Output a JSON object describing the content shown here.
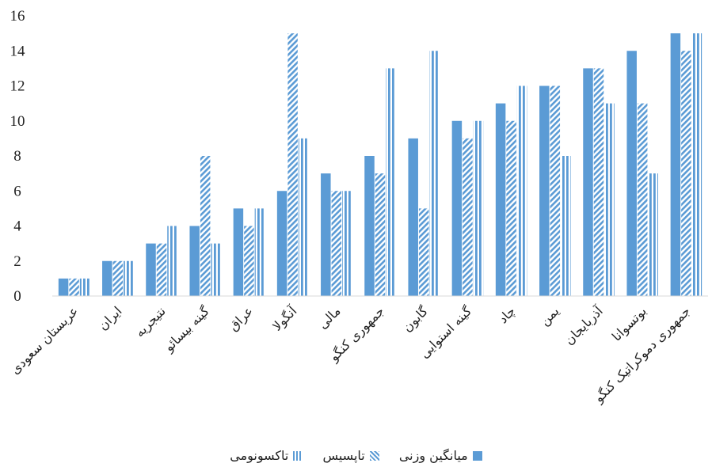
{
  "chart_data": {
    "type": "bar",
    "title": "",
    "xlabel": "",
    "ylabel": "",
    "ylim": [
      0,
      16
    ],
    "y_ticks": [
      "0",
      "2",
      "4",
      "6",
      "8",
      "10",
      "12",
      "14",
      "16"
    ],
    "grid": false,
    "legend_position": "bottom",
    "categories": [
      "عربستان سعودی",
      "ایران",
      "نتیجریه",
      "گینه بیسائو",
      "عراق",
      "آنگولا",
      "مالی",
      "جمهوری کنگو",
      "گابون",
      "گینه استوایی",
      "چاد",
      "یمن",
      "آذربایجان",
      "بوتسوانا",
      "جمهوری دموکراتیک کنگو"
    ],
    "series": [
      {
        "name": "میانگین وزنی",
        "pattern": "solid",
        "color": "#5b9bd5",
        "values": [
          1,
          2,
          3,
          4,
          5,
          6,
          7,
          8,
          9,
          10,
          11,
          12,
          13,
          14,
          15
        ]
      },
      {
        "name": "تاپسیس",
        "pattern": "diagonal",
        "color": "#5b9bd5",
        "values": [
          1,
          2,
          3,
          8,
          4,
          15,
          6,
          7,
          5,
          9,
          10,
          12,
          13,
          11,
          14
        ]
      },
      {
        "name": "تاکسونومی",
        "pattern": "vertical",
        "color": "#5b9bd5",
        "values": [
          1,
          2,
          4,
          3,
          5,
          9,
          6,
          13,
          14,
          10,
          12,
          8,
          11,
          7,
          15
        ]
      }
    ]
  }
}
